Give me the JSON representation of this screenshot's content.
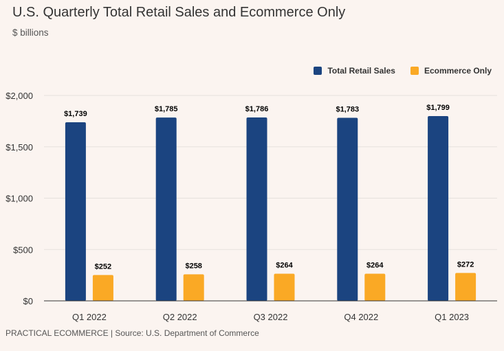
{
  "chart_data": {
    "type": "bar",
    "title": "U.S. Quarterly Total Retail Sales and Ecommerce Only",
    "subtitle": "$ billions",
    "categories": [
      "Q1 2022",
      "Q2 2022",
      "Q3 2022",
      "Q4 2022",
      "Q1 2023"
    ],
    "series": [
      {
        "name": "Total Retail Sales",
        "color": "#1b4480",
        "values": [
          1739,
          1785,
          1786,
          1783,
          1799
        ],
        "labels": [
          "$1,739",
          "$1,785",
          "$1,786",
          "$1,783",
          "$1,799"
        ]
      },
      {
        "name": "Ecommerce Only",
        "color": "#faa925",
        "values": [
          252,
          258,
          264,
          264,
          272
        ],
        "labels": [
          "$252",
          "$258",
          "$264",
          "$264",
          "$272"
        ]
      }
    ],
    "ylim": [
      0,
      2000
    ],
    "yticks": [
      0,
      500,
      1000,
      1500,
      2000
    ],
    "ytick_labels": [
      "$0",
      "$500",
      "$1,000",
      "$1,500",
      "$2,000"
    ],
    "grid": true,
    "legend_position": "top-right"
  },
  "footer": "PRACTICAL ECOMMERCE | Source: U.S. Department of Commerce"
}
